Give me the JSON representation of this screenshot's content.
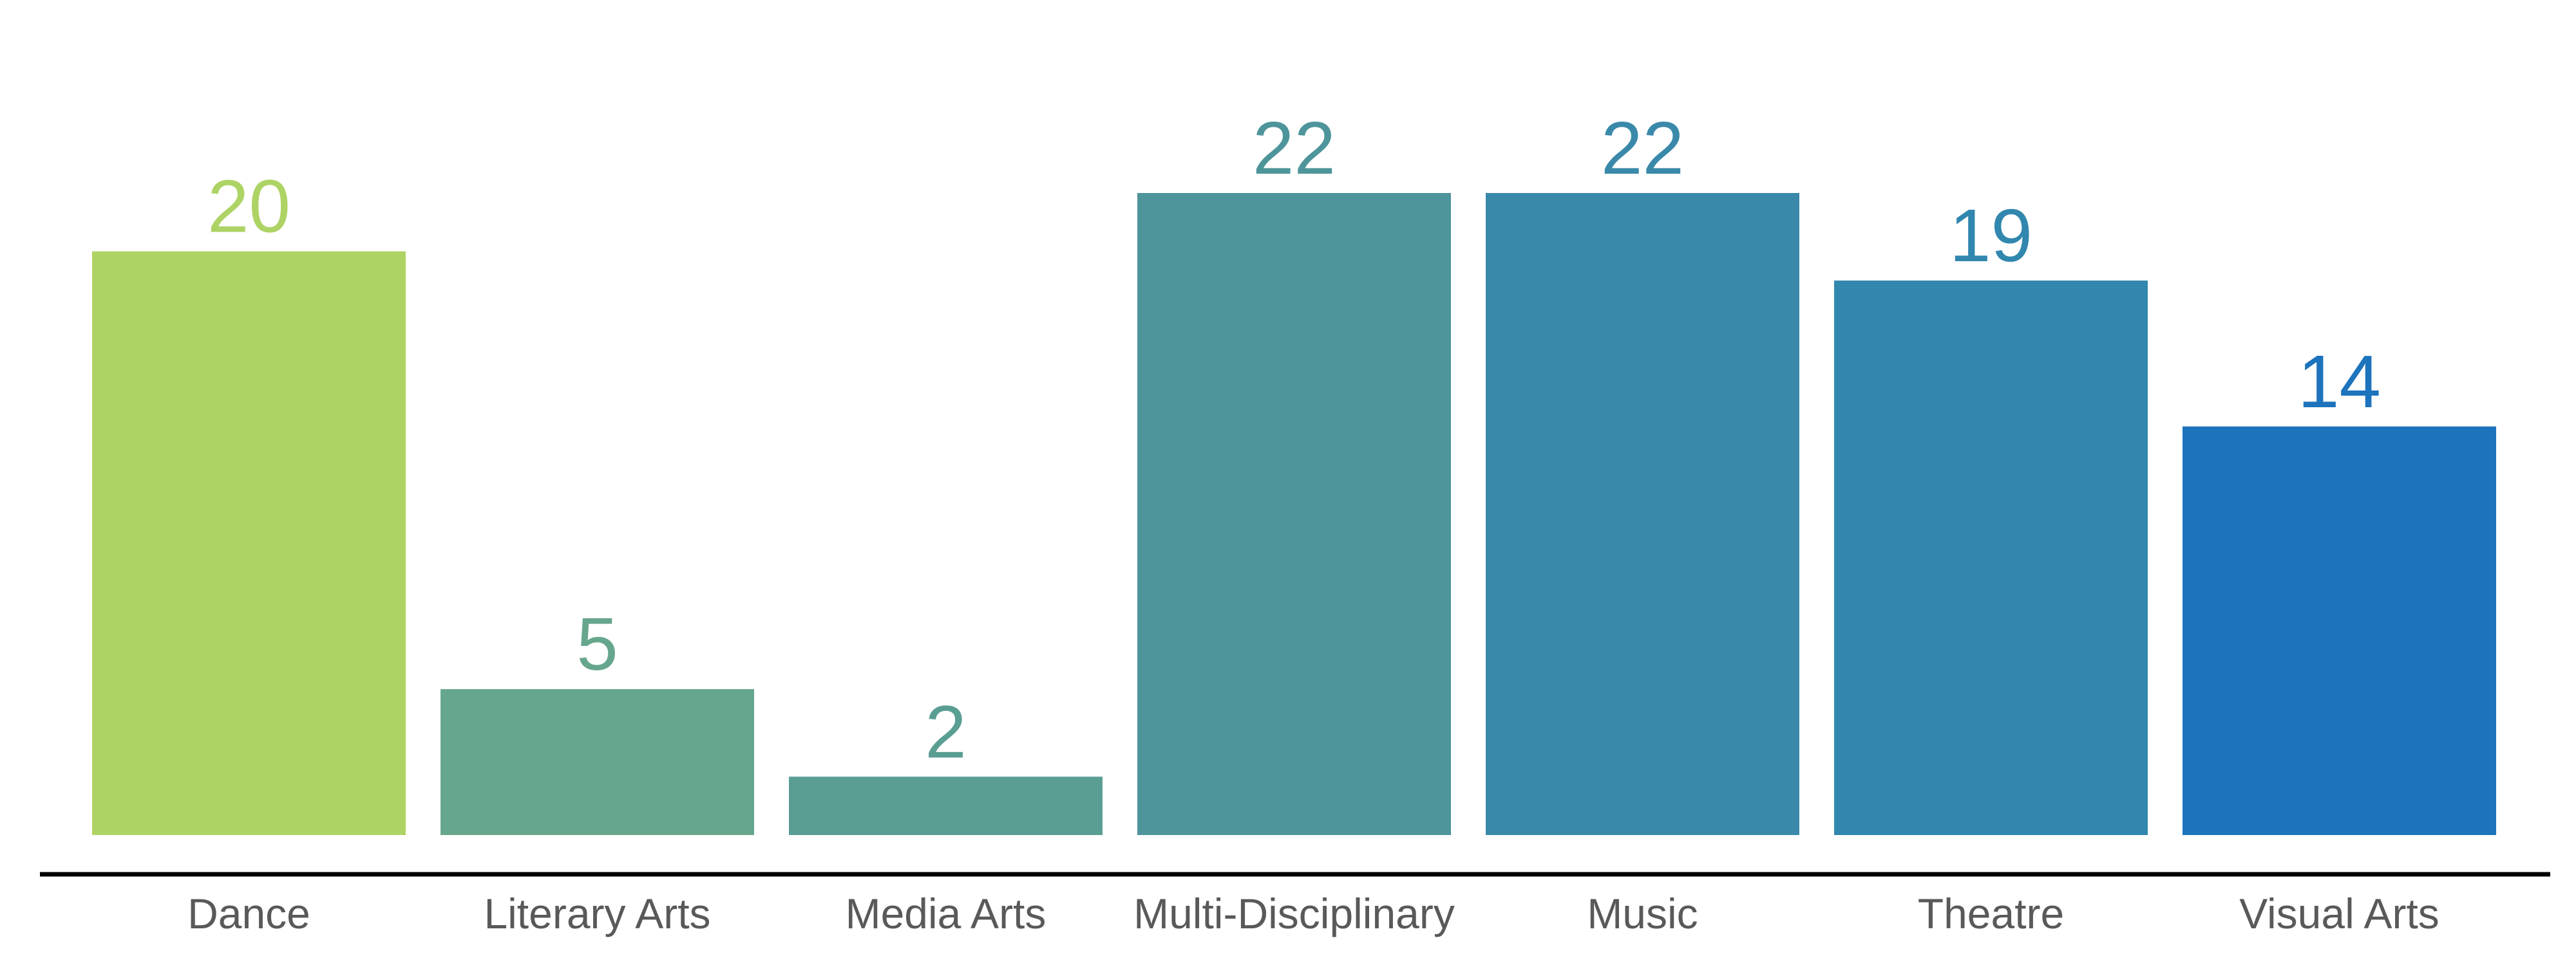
{
  "chart_data": {
    "type": "bar",
    "title": "",
    "xlabel": "",
    "ylabel": "",
    "ylim": [
      0,
      22
    ],
    "grid": false,
    "legend": "none",
    "categories": [
      "Dance",
      "Literary Arts",
      "Media Arts",
      "Multi-Disciplinary",
      "Music",
      "Theatre",
      "Visual Arts"
    ],
    "values": [
      20,
      5,
      2,
      22,
      22,
      19,
      14
    ],
    "value_labels": [
      "20",
      "5",
      "2",
      "22",
      "22",
      "19",
      "14"
    ],
    "colors": [
      "#aed365",
      "#66a68c",
      "#5a9e93",
      "#4e959b",
      "#3a89aa",
      "#3187ae",
      "#1d73bc"
    ],
    "axis_color": "#000000",
    "category_label_color": "#595959"
  }
}
